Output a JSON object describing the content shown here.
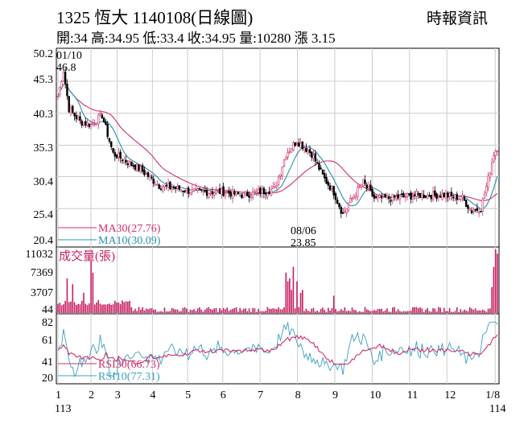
{
  "header": {
    "title": "1325  恆大 1140108(日線圖)",
    "quote": "開:34 高:34.95 低:33.4 收:34.95 量:10280 漲 3.15",
    "source": "時報資訊"
  },
  "colors": {
    "ma30": "#d0306a",
    "ma10": "#2b8fb0",
    "up": "#d0306a",
    "down": "#000000",
    "volume": "#c81e62",
    "rsi30": "#d0306a",
    "rsi10": "#3aa0c4",
    "grid": "#cccccc"
  },
  "chart_data": [
    {
      "type": "candlestick",
      "ylim": [
        20.4,
        50.2
      ],
      "yticks": [
        "50.2",
        "45.3",
        "40.3",
        "35.3",
        "30.4",
        "25.4",
        "20.4"
      ],
      "annotations": [
        {
          "label_date": "01/10",
          "label_value": "46.8"
        },
        {
          "label_date": "08/06",
          "label_value": "23.85"
        }
      ],
      "legend": [
        "MA30(27.76)",
        "MA10(30.09)"
      ],
      "x_month_ticks": [
        "1",
        "2",
        "3",
        "4",
        "5",
        "6",
        "7",
        "8",
        "9",
        "10",
        "11",
        "12",
        "1/8"
      ],
      "x_year_labels": [
        "113",
        "114"
      ],
      "series": [
        {
          "name": "MA30",
          "last": 27.76
        },
        {
          "name": "MA10",
          "last": 30.09
        }
      ]
    },
    {
      "type": "bar",
      "title": "成交量(張)",
      "yticks": [
        "11032",
        "7369",
        "3707",
        "44"
      ],
      "ylim": [
        44,
        11032
      ]
    },
    {
      "type": "line",
      "yticks": [
        "82",
        "61",
        "41",
        "20"
      ],
      "ylim": [
        20,
        82
      ],
      "legend": [
        "RSI30(66.73)",
        "RSI10(77.31)"
      ],
      "series": [
        {
          "name": "RSI30",
          "last": 66.73
        },
        {
          "name": "RSI10",
          "last": 77.31
        }
      ]
    }
  ]
}
